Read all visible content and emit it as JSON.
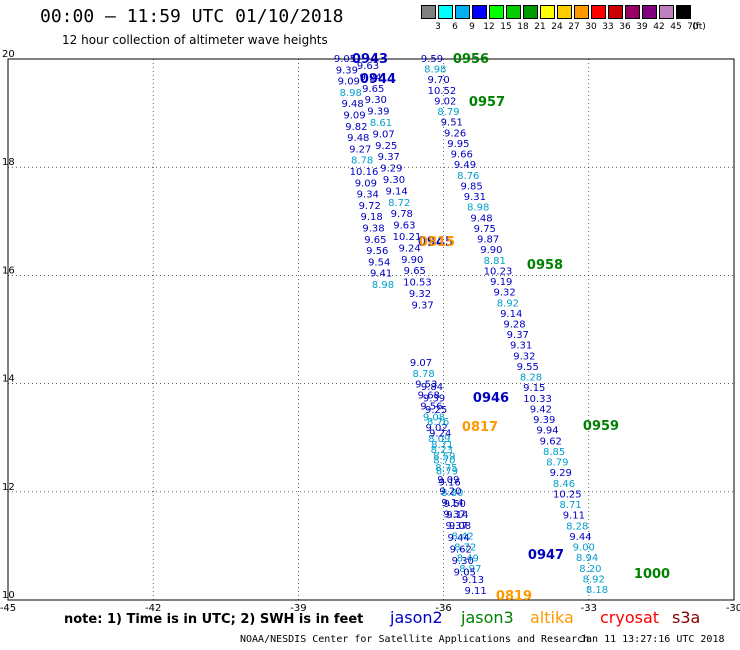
{
  "header": {
    "title": "00:00 – 11:59 UTC 01/10/2018",
    "subtitle": "12 hour collection of altimeter wave heights"
  },
  "scale": {
    "unit": "(ft)",
    "bins": [
      {
        "color": "#808080",
        "label": "3"
      },
      {
        "color": "#00ffff",
        "label": "6"
      },
      {
        "color": "#00b0f0",
        "label": "9"
      },
      {
        "color": "#0000ff",
        "label": "12"
      },
      {
        "color": "#00ff00",
        "label": "15"
      },
      {
        "color": "#00cc00",
        "label": "18"
      },
      {
        "color": "#009900",
        "label": "21"
      },
      {
        "color": "#ffff00",
        "label": "24"
      },
      {
        "color": "#ffcc00",
        "label": "27"
      },
      {
        "color": "#ff9900",
        "label": "30"
      },
      {
        "color": "#ff0000",
        "label": "33"
      },
      {
        "color": "#cc0000",
        "label": "36"
      },
      {
        "color": "#990066",
        "label": "39"
      },
      {
        "color": "#800080",
        "label": "42"
      },
      {
        "color": "#c080c0",
        "label": "45"
      },
      {
        "color": "#000000",
        "label": "70"
      }
    ]
  },
  "map": {
    "lon_ticks": [
      "-45",
      "-42",
      "-39",
      "-36",
      "-33",
      "-30"
    ],
    "lat_ticks": [
      "20",
      "18",
      "16",
      "14",
      "12",
      "10"
    ],
    "tracks": [
      {
        "color": "#0000c0",
        "label": "0943",
        "pts": [
          [
            "9.05",
            "#0000c0"
          ],
          [
            "9.39",
            "#0000c0"
          ],
          [
            "9.09",
            "#0000c0"
          ],
          [
            "8.98",
            "#00a0d0"
          ],
          [
            "9.48",
            "#0000c0"
          ],
          [
            "9.09",
            "#0000c0"
          ],
          [
            "9.82",
            "#0000c0"
          ],
          [
            "9.48",
            "#0000c0"
          ],
          [
            "9.27",
            "#0000c0"
          ],
          [
            "8.78",
            "#00a0d0"
          ],
          [
            "10.16",
            "#0000c0"
          ],
          [
            "9.09",
            "#0000c0"
          ],
          [
            "9.34",
            "#0000c0"
          ],
          [
            "9.72",
            "#0000c0"
          ],
          [
            "9.18",
            "#0000c0"
          ],
          [
            "9.38",
            "#0000c0"
          ],
          [
            "9.65",
            "#0000c0"
          ],
          [
            "9.56",
            "#0000c0"
          ],
          [
            "9.54",
            "#0000c0"
          ],
          [
            "9.41",
            "#0000c0"
          ],
          [
            "8.98",
            "#00a0d0"
          ]
        ]
      },
      {
        "color": "#0000c0",
        "label": "0944",
        "pts": [
          [
            "9.63",
            "#0000c0"
          ],
          [
            "9.24",
            "#0000c0"
          ],
          [
            "9.65",
            "#0000c0"
          ],
          [
            "9.30",
            "#0000c0"
          ],
          [
            "9.39",
            "#0000c0"
          ],
          [
            "8.61",
            "#00a0d0"
          ],
          [
            "9.07",
            "#0000c0"
          ],
          [
            "9.25",
            "#0000c0"
          ],
          [
            "9.37",
            "#0000c0"
          ],
          [
            "9.29",
            "#0000c0"
          ],
          [
            "9.30",
            "#0000c0"
          ],
          [
            "9.14",
            "#0000c0"
          ],
          [
            "8.72",
            "#00a0d0"
          ],
          [
            "9.78",
            "#0000c0"
          ],
          [
            "9.63",
            "#0000c0"
          ],
          [
            "10.21",
            "#0000c0"
          ],
          [
            "9.24",
            "#0000c0"
          ],
          [
            "9.90",
            "#0000c0"
          ],
          [
            "9.65",
            "#0000c0"
          ],
          [
            "10.53",
            "#0000c0"
          ],
          [
            "9.32",
            "#0000c0"
          ],
          [
            "9.37",
            "#0000c0"
          ]
        ]
      },
      {
        "color": "#0000c0",
        "label": "0945",
        "pts": [
          [
            "9.07",
            "#0000c0"
          ],
          [
            "8.78",
            "#00a0d0"
          ],
          [
            "9.53",
            "#0000c0"
          ],
          [
            "9.68",
            "#0000c0"
          ],
          [
            "9.56",
            "#0000c0"
          ],
          [
            "9.08",
            "#00a0d0"
          ],
          [
            "9.02",
            "#0000c0"
          ],
          [
            "8.09",
            "#00a0d0"
          ],
          [
            "8.23",
            "#00a0d0"
          ],
          [
            "8.70",
            "#00a0d0"
          ],
          [
            "8.79",
            "#00a0d0"
          ],
          [
            "9.16",
            "#0000c0"
          ],
          [
            "8.80",
            "#00a0d0"
          ],
          [
            "9.50",
            "#0000c0"
          ],
          [
            "9.14",
            "#0000c0"
          ],
          [
            "9.08",
            "#0000c0"
          ],
          [
            "8.42",
            "#00a0d0"
          ],
          [
            "8.72",
            "#00a0d0"
          ],
          [
            "8.49",
            "#00a0d0"
          ],
          [
            "8.97",
            "#00a0d0"
          ],
          [
            "9.13",
            "#0000c0"
          ],
          [
            "9.11",
            "#0000c0"
          ]
        ]
      },
      {
        "color": "#0000c0",
        "label": "0946",
        "pts": [
          [
            "9.84",
            "#0000c0"
          ],
          [
            "9.39",
            "#0000c0"
          ],
          [
            "9.25",
            "#0000c0"
          ],
          [
            "8.76",
            "#00a0d0"
          ],
          [
            "9.24",
            "#0000c0"
          ],
          [
            "8.71",
            "#00a0d0"
          ],
          [
            "8.59",
            "#00a0d0"
          ],
          [
            "8.75",
            "#00a0d0"
          ],
          [
            "9.09",
            "#0000c0"
          ],
          [
            "9.20",
            "#0000c0"
          ],
          [
            "9.14",
            "#0000c0"
          ],
          [
            "9.37",
            "#0000c0"
          ],
          [
            "9.37",
            "#0000c0"
          ],
          [
            "9.44",
            "#0000c0"
          ],
          [
            "9.62",
            "#0000c0"
          ],
          [
            "9.30",
            "#0000c0"
          ],
          [
            "9.05",
            "#0000c0"
          ]
        ]
      },
      {
        "color": "#0000c0",
        "label": "0947",
        "pts": []
      },
      {
        "color": "#008000",
        "label": "0956",
        "pts": [
          [
            "9.59",
            "#0000c0"
          ],
          [
            "8.98",
            "#00a0d0"
          ],
          [
            "9.70",
            "#0000c0"
          ],
          [
            "10.52",
            "#0000c0"
          ],
          [
            "9.02",
            "#0000c0"
          ],
          [
            "8.79",
            "#00a0d0"
          ],
          [
            "9.51",
            "#0000c0"
          ],
          [
            "9.26",
            "#0000c0"
          ],
          [
            "9.95",
            "#0000c0"
          ],
          [
            "9.66",
            "#0000c0"
          ],
          [
            "9.49",
            "#0000c0"
          ],
          [
            "8.76",
            "#00a0d0"
          ],
          [
            "9.85",
            "#0000c0"
          ],
          [
            "9.31",
            "#0000c0"
          ],
          [
            "8.98",
            "#00a0d0"
          ],
          [
            "9.48",
            "#0000c0"
          ],
          [
            "9.75",
            "#0000c0"
          ],
          [
            "9.87",
            "#0000c0"
          ],
          [
            "9.90",
            "#0000c0"
          ],
          [
            "8.81",
            "#00a0d0"
          ],
          [
            "10.23",
            "#0000c0"
          ],
          [
            "9.19",
            "#0000c0"
          ],
          [
            "9.32",
            "#0000c0"
          ],
          [
            "8.92",
            "#00a0d0"
          ],
          [
            "9.14",
            "#0000c0"
          ],
          [
            "9.28",
            "#0000c0"
          ],
          [
            "9.37",
            "#0000c0"
          ],
          [
            "9.31",
            "#0000c0"
          ],
          [
            "9.32",
            "#0000c0"
          ],
          [
            "9.55",
            "#0000c0"
          ],
          [
            "8.28",
            "#00a0d0"
          ],
          [
            "9.15",
            "#0000c0"
          ],
          [
            "10.33",
            "#0000c0"
          ],
          [
            "9.42",
            "#0000c0"
          ],
          [
            "9.39",
            "#0000c0"
          ],
          [
            "9.94",
            "#0000c0"
          ],
          [
            "9.62",
            "#0000c0"
          ],
          [
            "8.85",
            "#00a0d0"
          ],
          [
            "8.79",
            "#00a0d0"
          ],
          [
            "9.29",
            "#0000c0"
          ],
          [
            "8.46",
            "#00a0d0"
          ],
          [
            "10.25",
            "#0000c0"
          ],
          [
            "8.71",
            "#00a0d0"
          ],
          [
            "9.11",
            "#0000c0"
          ],
          [
            "8.28",
            "#00a0d0"
          ],
          [
            "9.44",
            "#0000c0"
          ],
          [
            "9.00",
            "#00a0d0"
          ],
          [
            "8.94",
            "#00a0d0"
          ],
          [
            "8.20",
            "#00a0d0"
          ],
          [
            "8.92",
            "#00a0d0"
          ],
          [
            "8.18",
            "#00a0d0"
          ]
        ]
      }
    ],
    "labels": [
      {
        "text": "0943",
        "color": "#0000c0",
        "cls": "pass"
      },
      {
        "text": "0944",
        "color": "#0000c0",
        "cls": "pass"
      },
      {
        "text": "0945",
        "color": "#0000c0",
        "cls": "pass"
      },
      {
        "text": "0946",
        "color": "#0000c0",
        "cls": "pass"
      },
      {
        "text": "0947",
        "color": "#0000c0",
        "cls": "pass"
      },
      {
        "text": "0956",
        "color": "#008000",
        "cls": "pass"
      },
      {
        "text": "0957",
        "color": "#008000",
        "cls": "pass"
      },
      {
        "text": "0958",
        "color": "#008000",
        "cls": "pass"
      },
      {
        "text": "0959",
        "color": "#008000",
        "cls": "pass"
      },
      {
        "text": "1000",
        "color": "#008000",
        "cls": "pass"
      },
      {
        "text": "0815",
        "color": "#ff9900",
        "cls": "pass"
      },
      {
        "text": "0817",
        "color": "#ff9900",
        "cls": "pass"
      },
      {
        "text": "0819",
        "color": "#ff9900",
        "cls": "pass"
      }
    ]
  },
  "note": "note: 1) Time is in UTC; 2) SWH is in feet",
  "satellites": [
    {
      "name": "jason2",
      "color": "#0000c0"
    },
    {
      "name": "jason3",
      "color": "#008000"
    },
    {
      "name": "altika",
      "color": "#ff9900"
    },
    {
      "name": "cryosat",
      "color": "#ff0000"
    },
    {
      "name": "s3a",
      "color": "#800000"
    }
  ],
  "footer": {
    "left": "NOAA/NESDIS Center for Satellite Applications and Research",
    "right": "Jan 11 13:27:16 UTC 2018"
  }
}
